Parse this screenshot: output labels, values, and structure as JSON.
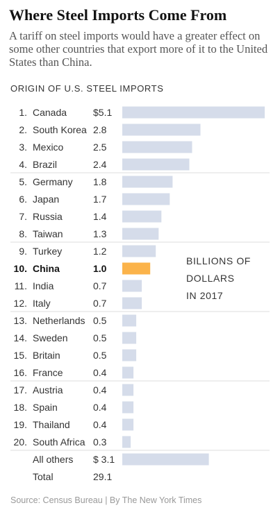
{
  "header": {
    "title": "Where Steel Imports Come From",
    "subtitle": "A tariff on steel imports would have a greater effect on some other countries that export more of it to the United States than China."
  },
  "section_label": "ORIGIN OF U.S. STEEL IMPORTS",
  "unit_note": [
    "BILLIONS OF",
    "DOLLARS",
    "IN 2017"
  ],
  "source": "Source: Census Bureau | By The New York Times",
  "colors": {
    "bar": "#d5dcea",
    "highlight": "#fbb34a",
    "rule": "#dddddd"
  },
  "chart_data": {
    "type": "bar",
    "orientation": "horizontal",
    "title": "ORIGIN OF U.S. STEEL IMPORTS",
    "unit": "BILLIONS OF DOLLARS IN 2017",
    "highlight": "China",
    "rows": [
      {
        "rank": "1.",
        "name": "Canada",
        "label": "$5.1",
        "value": 5.1
      },
      {
        "rank": "2.",
        "name": "South Korea",
        "label": "2.8",
        "value": 2.8
      },
      {
        "rank": "3.",
        "name": "Mexico",
        "label": "2.5",
        "value": 2.5
      },
      {
        "rank": "4.",
        "name": "Brazil",
        "label": "2.4",
        "value": 2.4
      },
      {
        "rank": "5.",
        "name": "Germany",
        "label": "1.8",
        "value": 1.8
      },
      {
        "rank": "6.",
        "name": "Japan",
        "label": "1.7",
        "value": 1.7
      },
      {
        "rank": "7.",
        "name": "Russia",
        "label": "1.4",
        "value": 1.4
      },
      {
        "rank": "8.",
        "name": "Taiwan",
        "label": "1.3",
        "value": 1.3
      },
      {
        "rank": "9.",
        "name": "Turkey",
        "label": "1.2",
        "value": 1.2
      },
      {
        "rank": "10.",
        "name": "China",
        "label": "1.0",
        "value": 1.0
      },
      {
        "rank": "11.",
        "name": "India",
        "label": "0.7",
        "value": 0.7
      },
      {
        "rank": "12.",
        "name": "Italy",
        "label": "0.7",
        "value": 0.7
      },
      {
        "rank": "13.",
        "name": "Netherlands",
        "label": "0.5",
        "value": 0.5
      },
      {
        "rank": "14.",
        "name": "Sweden",
        "label": "0.5",
        "value": 0.5
      },
      {
        "rank": "15.",
        "name": "Britain",
        "label": "0.5",
        "value": 0.5
      },
      {
        "rank": "16.",
        "name": "France",
        "label": "0.4",
        "value": 0.4
      },
      {
        "rank": "17.",
        "name": "Austria",
        "label": "0.4",
        "value": 0.4
      },
      {
        "rank": "18.",
        "name": "Spain",
        "label": "0.4",
        "value": 0.4
      },
      {
        "rank": "19.",
        "name": "Thailand",
        "label": "0.4",
        "value": 0.4
      },
      {
        "rank": "20.",
        "name": "South Africa",
        "label": "0.3",
        "value": 0.3
      },
      {
        "rank": "",
        "name": "All others",
        "label": "$ 3.1",
        "value": 3.1
      }
    ],
    "total": {
      "name": "Total",
      "label": "29.1",
      "value": 29.1
    },
    "xlim": [
      0,
      5.1
    ]
  }
}
